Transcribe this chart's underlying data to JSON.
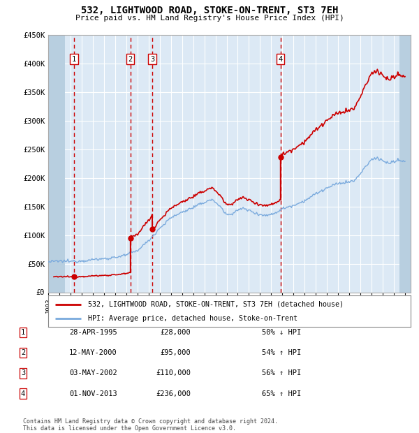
{
  "title": "532, LIGHTWOOD ROAD, STOKE-ON-TRENT, ST3 7EH",
  "subtitle": "Price paid vs. HM Land Registry's House Price Index (HPI)",
  "xlim_start": 1993.0,
  "xlim_end": 2025.5,
  "ylim_min": 0,
  "ylim_max": 450000,
  "yticks": [
    0,
    50000,
    100000,
    150000,
    200000,
    250000,
    300000,
    350000,
    400000,
    450000
  ],
  "ytick_labels": [
    "£0",
    "£50K",
    "£100K",
    "£150K",
    "£200K",
    "£250K",
    "£300K",
    "£350K",
    "£400K",
    "£450K"
  ],
  "xticks": [
    1993,
    1994,
    1995,
    1996,
    1997,
    1998,
    1999,
    2000,
    2001,
    2002,
    2003,
    2004,
    2005,
    2006,
    2007,
    2008,
    2009,
    2010,
    2011,
    2012,
    2013,
    2014,
    2015,
    2016,
    2017,
    2018,
    2019,
    2020,
    2021,
    2022,
    2023,
    2024,
    2025
  ],
  "hpi_color": "#7aaadd",
  "price_color": "#cc0000",
  "vline_color": "#cc0000",
  "sale_dates": [
    1995.32,
    2000.37,
    2002.34,
    2013.83
  ],
  "sale_prices": [
    28000,
    95000,
    110000,
    236000
  ],
  "sale_labels": [
    "1",
    "2",
    "3",
    "4"
  ],
  "legend_price_label": "532, LIGHTWOOD ROAD, STOKE-ON-TRENT, ST3 7EH (detached house)",
  "legend_hpi_label": "HPI: Average price, detached house, Stoke-on-Trent",
  "table_rows": [
    [
      "1",
      "28-APR-1995",
      "£28,000",
      "50% ↓ HPI"
    ],
    [
      "2",
      "12-MAY-2000",
      "£95,000",
      "54% ↑ HPI"
    ],
    [
      "3",
      "03-MAY-2002",
      "£110,000",
      "56% ↑ HPI"
    ],
    [
      "4",
      "01-NOV-2013",
      "£236,000",
      "65% ↑ HPI"
    ]
  ],
  "footnote": "Contains HM Land Registry data © Crown copyright and database right 2024.\nThis data is licensed under the Open Government Licence v3.0.",
  "background_plot": "#dce9f5",
  "background_fig": "#ffffff",
  "grid_color": "#ffffff",
  "label_box_edge": "#cc0000",
  "hatch_color": "#b8cfe0"
}
